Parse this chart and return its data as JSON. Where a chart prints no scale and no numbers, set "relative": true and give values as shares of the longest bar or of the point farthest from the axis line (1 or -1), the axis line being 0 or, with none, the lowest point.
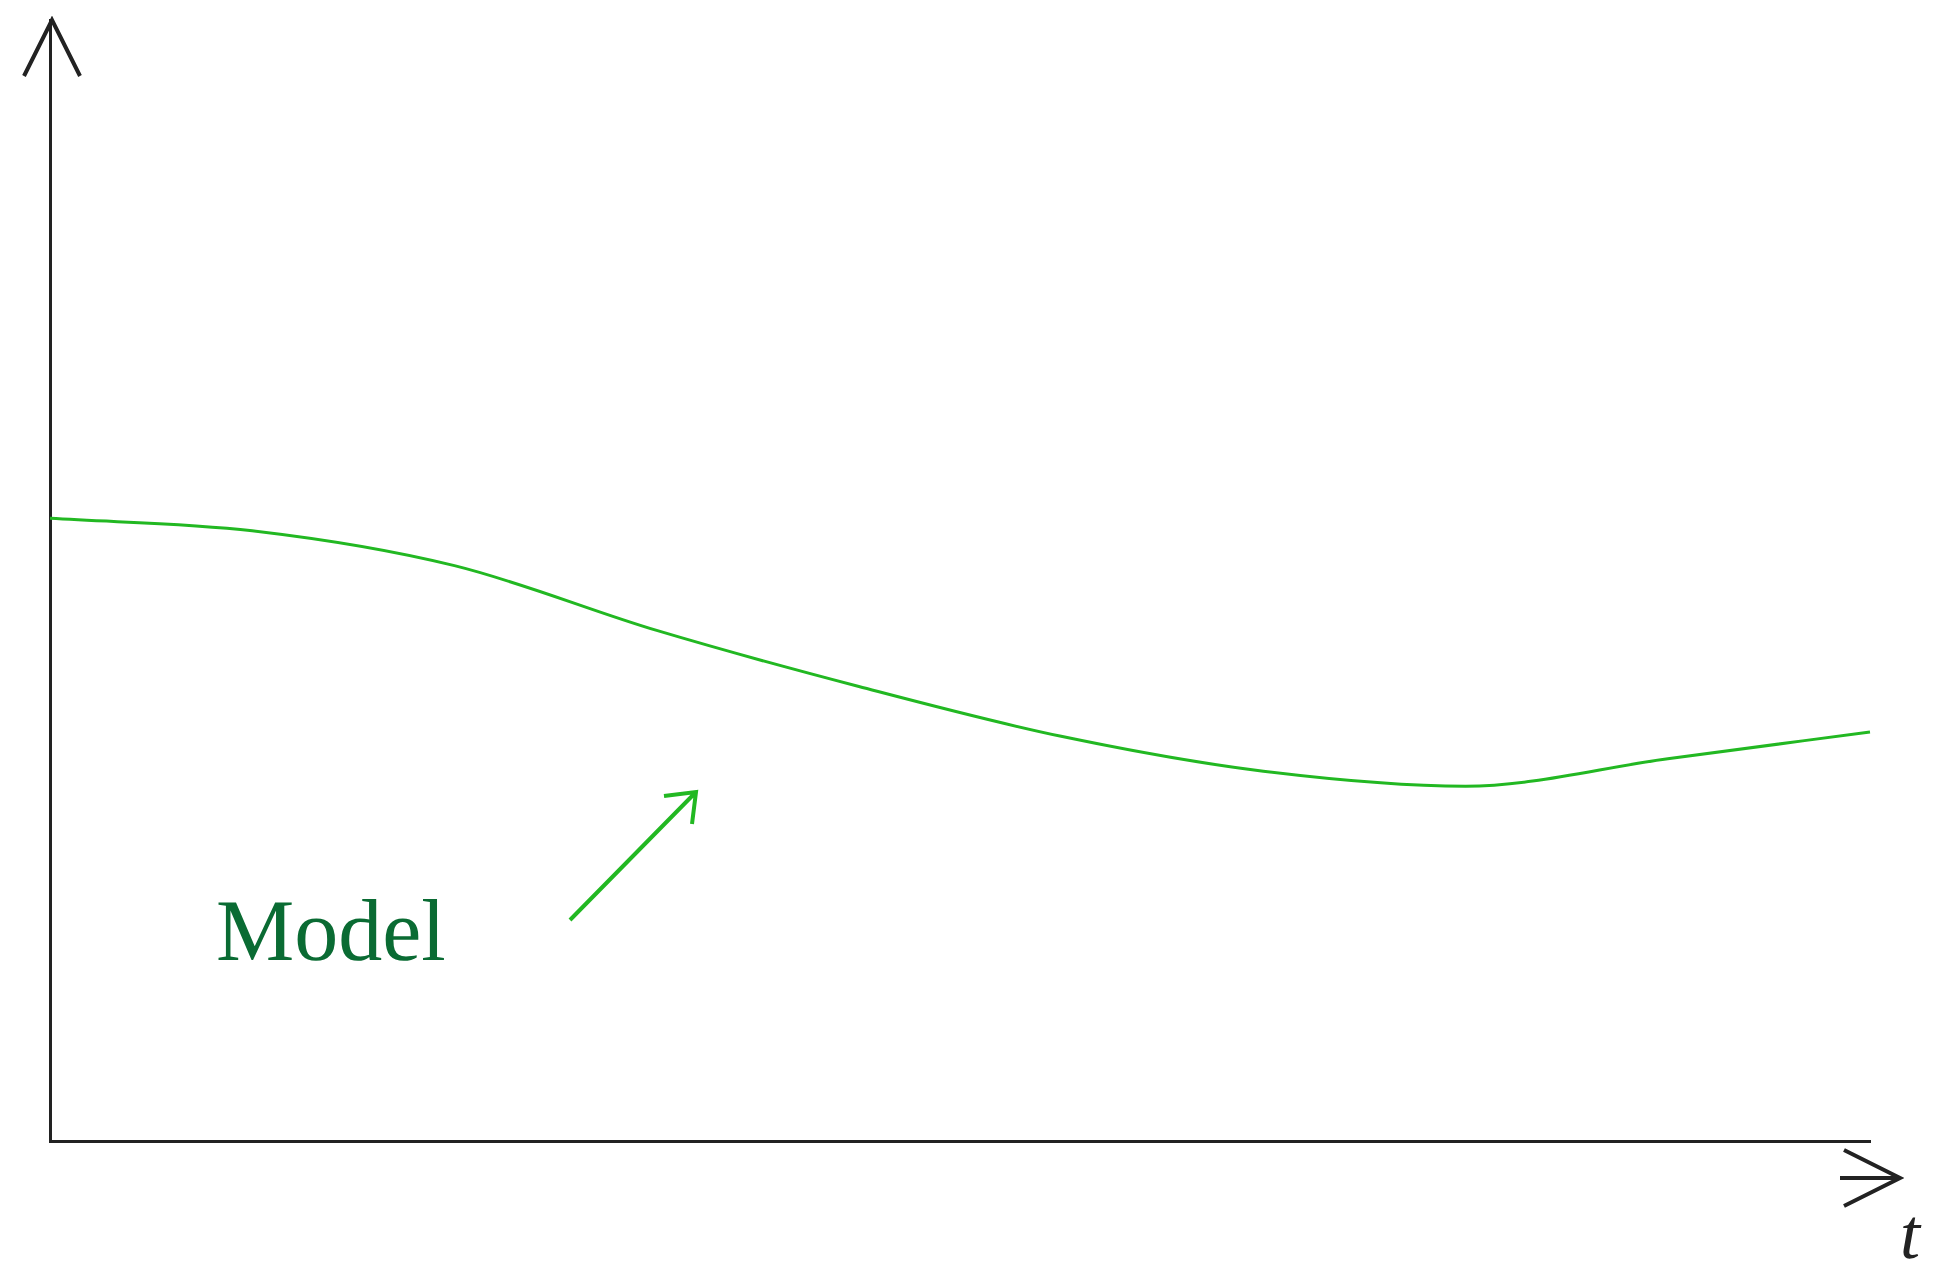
{
  "chart_data": {
    "type": "line",
    "relative": true,
    "xlabel": "t",
    "categories": [
      null,
      null,
      null,
      null,
      null,
      null,
      null,
      null,
      null,
      null
    ],
    "series": [
      {
        "color": "#22b822",
        "values": [
          1,
          0.98,
          0.924,
          0.82,
          0.73,
          0.65,
          0.594,
          0.57,
          0.614,
          0.657
        ]
      }
    ],
    "annotations": [
      "Model"
    ],
    "grid": false,
    "legend": false,
    "marker": "none",
    "line_style": "solid"
  }
}
